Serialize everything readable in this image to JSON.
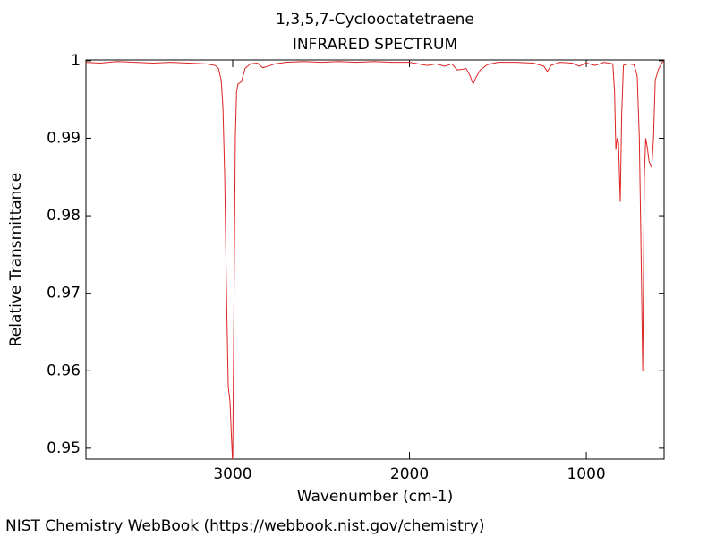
{
  "chart_data": {
    "type": "line",
    "title": "1,3,5,7-Cyclooctatetraene",
    "subtitle": "INFRARED SPECTRUM",
    "x_label": "Wavenumber (cm-1)",
    "y_label": "Relative Transmittance",
    "source": "NIST Chemistry WebBook (https://webbook.nist.gov/chemistry)",
    "color": "#dd2222",
    "xlim": [
      3830,
      560
    ],
    "ylim": [
      0.9486,
      1.0001
    ],
    "xticks": [
      3000,
      2000,
      1000
    ],
    "yticks": [
      1,
      0.99,
      0.98,
      0.97,
      0.96,
      0.95
    ],
    "x": [
      3830,
      3750,
      3650,
      3550,
      3450,
      3350,
      3250,
      3150,
      3100,
      3080,
      3065,
      3055,
      3045,
      3035,
      3025,
      3015,
      3008,
      3000,
      2992,
      2985,
      2978,
      2970,
      2950,
      2930,
      2900,
      2860,
      2830,
      2800,
      2760,
      2700,
      2600,
      2500,
      2400,
      2300,
      2200,
      2100,
      2000,
      1950,
      1900,
      1850,
      1800,
      1760,
      1730,
      1700,
      1680,
      1660,
      1640,
      1625,
      1600,
      1560,
      1500,
      1400,
      1300,
      1240,
      1220,
      1200,
      1150,
      1080,
      1040,
      1000,
      950,
      900,
      850,
      840,
      833,
      826,
      818,
      808,
      800,
      790,
      760,
      730,
      712,
      700,
      690,
      681,
      672,
      664,
      655,
      645,
      630,
      620,
      610,
      590,
      570,
      560
    ],
    "values": [
      0.9998,
      0.9997,
      0.9999,
      0.9998,
      0.9997,
      0.9998,
      0.9997,
      0.9996,
      0.9994,
      0.999,
      0.9975,
      0.994,
      0.985,
      0.97,
      0.958,
      0.956,
      0.952,
      0.948,
      0.97,
      0.99,
      0.996,
      0.997,
      0.9973,
      0.999,
      0.9996,
      0.9997,
      0.9991,
      0.9993,
      0.9996,
      0.9998,
      0.9999,
      0.9998,
      0.9999,
      0.9998,
      0.9999,
      0.9998,
      0.9998,
      0.9996,
      0.9994,
      0.9996,
      0.9993,
      0.9996,
      0.9988,
      0.9989,
      0.999,
      0.9982,
      0.997,
      0.9978,
      0.9988,
      0.9995,
      0.9998,
      0.9998,
      0.9997,
      0.9993,
      0.9986,
      0.9994,
      0.9998,
      0.9997,
      0.9993,
      0.9997,
      0.9994,
      0.9998,
      0.9996,
      0.996,
      0.9885,
      0.99,
      0.9895,
      0.9818,
      0.993,
      0.9994,
      0.9996,
      0.9995,
      0.998,
      0.99,
      0.975,
      0.96,
      0.985,
      0.99,
      0.9888,
      0.987,
      0.9862,
      0.99,
      0.9975,
      0.999,
      0.9998,
      1.0
    ]
  }
}
